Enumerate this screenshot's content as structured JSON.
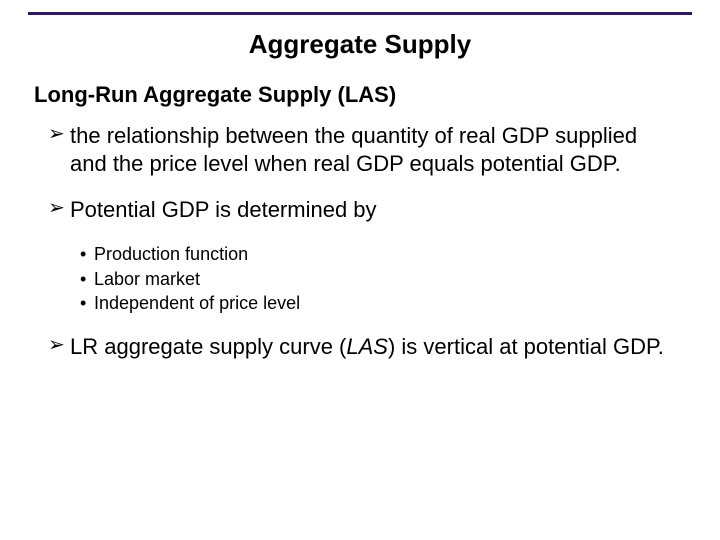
{
  "rule_color": "#2a1a5e",
  "title": "Aggregate Supply",
  "subtitle": "Long-Run Aggregate Supply (LAS)",
  "bullets": {
    "b1": "the relationship between the quantity of real GDP supplied and the price level when real GDP equals potential GDP.",
    "b2": "Potential GDP is determined by",
    "b3_pre": "LR aggregate supply curve (",
    "b3_it": "LAS",
    "b3_post": ") is vertical at potential GDP."
  },
  "sub": {
    "s1": "Production function",
    "s2": "Labor market",
    "s3": "Independent of price level"
  }
}
